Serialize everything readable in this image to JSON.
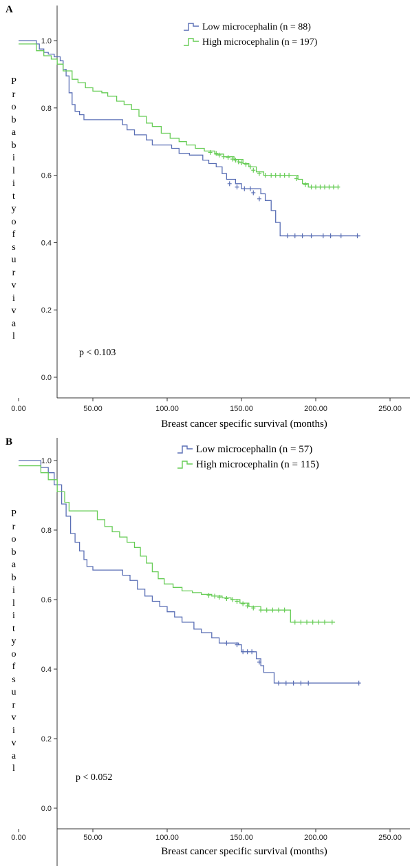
{
  "colors": {
    "low": "#5a6fb5",
    "high": "#66cc55",
    "axis": "#333333"
  },
  "chart_data": [
    {
      "type": "line",
      "panel_label": "A",
      "xlabel": "Breast cancer specific survival (months)",
      "ylabel": "Probability of survival",
      "ylabel_letters": [
        "P",
        "r",
        "o",
        "b",
        "a",
        "b",
        "i",
        "l",
        "i",
        "t",
        "y",
        "o",
        "f",
        "s",
        "u",
        "r",
        "v",
        "i",
        "v",
        "a",
        "l"
      ],
      "annotation": "p < 0.103",
      "xlim": [
        0,
        250
      ],
      "ylim": [
        0,
        1.0
      ],
      "x_ticks": [
        "0.00",
        "50.00",
        "100.00",
        "150.00",
        "200.00",
        "250.00"
      ],
      "y_ticks": [
        "0.0",
        "0.2",
        "0.4",
        "0.6",
        "0.8",
        "1.0"
      ],
      "legend": [
        "Low microcephalin (n = 88)",
        "High microcephalin (n = 197)"
      ],
      "series": [
        {
          "name": "Low microcephalin (n = 88)",
          "points": [
            [
              0,
              1.0
            ],
            [
              10,
              1.0
            ],
            [
              12,
              0.99
            ],
            [
              14,
              0.975
            ],
            [
              17,
              0.965
            ],
            [
              20,
              0.96
            ],
            [
              24,
              0.952
            ],
            [
              28,
              0.94
            ],
            [
              30,
              0.915
            ],
            [
              32,
              0.895
            ],
            [
              34,
              0.845
            ],
            [
              36,
              0.81
            ],
            [
              38,
              0.79
            ],
            [
              41,
              0.78
            ],
            [
              44,
              0.765
            ],
            [
              55,
              0.765
            ],
            [
              66,
              0.765
            ],
            [
              70,
              0.75
            ],
            [
              73,
              0.735
            ],
            [
              78,
              0.72
            ],
            [
              86,
              0.705
            ],
            [
              90,
              0.69
            ],
            [
              103,
              0.68
            ],
            [
              108,
              0.665
            ],
            [
              115,
              0.66
            ],
            [
              124,
              0.645
            ],
            [
              128,
              0.635
            ],
            [
              133,
              0.625
            ],
            [
              137,
              0.605
            ],
            [
              140,
              0.588
            ],
            [
              146,
              0.575
            ],
            [
              150,
              0.56
            ],
            [
              160,
              0.56
            ],
            [
              163,
              0.545
            ],
            [
              166,
              0.525
            ],
            [
              170,
              0.495
            ],
            [
              173,
              0.46
            ],
            [
              176,
              0.42
            ],
            [
              230,
              0.42
            ]
          ],
          "censors": [
            [
              142,
              0.575
            ],
            [
              147,
              0.565
            ],
            [
              152,
              0.56
            ],
            [
              156,
              0.56
            ],
            [
              158,
              0.548
            ],
            [
              162,
              0.53
            ],
            [
              181,
              0.42
            ],
            [
              186,
              0.42
            ],
            [
              191,
              0.42
            ],
            [
              197,
              0.42
            ],
            [
              205,
              0.42
            ],
            [
              210,
              0.42
            ],
            [
              217,
              0.42
            ],
            [
              228,
              0.42
            ]
          ]
        },
        {
          "name": "High microcephalin (n = 197)",
          "points": [
            [
              0,
              0.99
            ],
            [
              6,
              0.99
            ],
            [
              12,
              0.97
            ],
            [
              17,
              0.955
            ],
            [
              22,
              0.945
            ],
            [
              26,
              0.93
            ],
            [
              30,
              0.91
            ],
            [
              36,
              0.885
            ],
            [
              40,
              0.875
            ],
            [
              45,
              0.86
            ],
            [
              50,
              0.85
            ],
            [
              56,
              0.845
            ],
            [
              60,
              0.835
            ],
            [
              66,
              0.82
            ],
            [
              71,
              0.81
            ],
            [
              76,
              0.795
            ],
            [
              81,
              0.775
            ],
            [
              86,
              0.755
            ],
            [
              90,
              0.745
            ],
            [
              96,
              0.725
            ],
            [
              102,
              0.71
            ],
            [
              108,
              0.7
            ],
            [
              113,
              0.69
            ],
            [
              119,
              0.68
            ],
            [
              125,
              0.672
            ],
            [
              132,
              0.663
            ],
            [
              138,
              0.655
            ],
            [
              145,
              0.647
            ],
            [
              151,
              0.635
            ],
            [
              155,
              0.625
            ],
            [
              160,
              0.61
            ],
            [
              165,
              0.6
            ],
            [
              185,
              0.6
            ],
            [
              188,
              0.588
            ],
            [
              191,
              0.575
            ],
            [
              195,
              0.565
            ],
            [
              215,
              0.565
            ]
          ],
          "censors": [
            [
              129,
              0.668
            ],
            [
              133,
              0.665
            ],
            [
              135,
              0.66
            ],
            [
              138,
              0.655
            ],
            [
              141,
              0.653
            ],
            [
              144,
              0.648
            ],
            [
              146,
              0.645
            ],
            [
              148,
              0.64
            ],
            [
              150,
              0.637
            ],
            [
              153,
              0.632
            ],
            [
              156,
              0.625
            ],
            [
              158,
              0.615
            ],
            [
              162,
              0.605
            ],
            [
              166,
              0.6
            ],
            [
              170,
              0.6
            ],
            [
              173,
              0.6
            ],
            [
              176,
              0.6
            ],
            [
              179,
              0.6
            ],
            [
              182,
              0.6
            ],
            [
              187,
              0.59
            ],
            [
              193,
              0.572
            ],
            [
              197,
              0.565
            ],
            [
              200,
              0.565
            ],
            [
              203,
              0.565
            ],
            [
              206,
              0.565
            ],
            [
              209,
              0.565
            ],
            [
              212,
              0.565
            ],
            [
              215,
              0.565
            ]
          ]
        }
      ]
    },
    {
      "type": "line",
      "panel_label": "B",
      "xlabel": "Breast cancer specific survival (months)",
      "ylabel": "Probability of survival",
      "ylabel_letters": [
        "P",
        "r",
        "o",
        "b",
        "a",
        "b",
        "i",
        "l",
        "i",
        "t",
        "y",
        "o",
        "f",
        "s",
        "u",
        "r",
        "v",
        "i",
        "v",
        "a",
        "l"
      ],
      "annotation": "p < 0.052",
      "xlim": [
        0,
        250
      ],
      "ylim": [
        0,
        1.0
      ],
      "x_ticks": [
        "0.00",
        "50.00",
        "100.00",
        "150.00",
        "200.00",
        "250.00"
      ],
      "y_ticks": [
        "0.0",
        "0.2",
        "0.4",
        "0.6",
        "0.8",
        "1.0"
      ],
      "legend": [
        "Low microcephalin (n = 57)",
        "High microcephalin (n = 115)"
      ],
      "series": [
        {
          "name": "Low microcephalin (n = 57)",
          "points": [
            [
              0,
              1.0
            ],
            [
              13,
              1.0
            ],
            [
              15,
              0.98
            ],
            [
              20,
              0.965
            ],
            [
              24,
              0.93
            ],
            [
              29,
              0.875
            ],
            [
              32,
              0.84
            ],
            [
              35,
              0.79
            ],
            [
              38,
              0.765
            ],
            [
              41,
              0.74
            ],
            [
              44,
              0.715
            ],
            [
              46,
              0.695
            ],
            [
              50,
              0.685
            ],
            [
              65,
              0.685
            ],
            [
              70,
              0.67
            ],
            [
              75,
              0.655
            ],
            [
              80,
              0.63
            ],
            [
              85,
              0.61
            ],
            [
              90,
              0.595
            ],
            [
              95,
              0.58
            ],
            [
              100,
              0.565
            ],
            [
              105,
              0.55
            ],
            [
              110,
              0.535
            ],
            [
              118,
              0.515
            ],
            [
              123,
              0.505
            ],
            [
              130,
              0.49
            ],
            [
              135,
              0.475
            ],
            [
              148,
              0.47
            ],
            [
              150,
              0.45
            ],
            [
              158,
              0.45
            ],
            [
              160,
              0.43
            ],
            [
              163,
              0.41
            ],
            [
              165,
              0.39
            ],
            [
              172,
              0.36
            ],
            [
              230,
              0.36
            ]
          ],
          "censors": [
            [
              140,
              0.475
            ],
            [
              147,
              0.47
            ],
            [
              151,
              0.45
            ],
            [
              154,
              0.45
            ],
            [
              157,
              0.45
            ],
            [
              162,
              0.42
            ],
            [
              175,
              0.36
            ],
            [
              180,
              0.36
            ],
            [
              185,
              0.36
            ],
            [
              190,
              0.36
            ],
            [
              195,
              0.36
            ],
            [
              229,
              0.36
            ]
          ]
        },
        {
          "name": "High microcephalin (n = 115)",
          "points": [
            [
              0,
              0.985
            ],
            [
              11,
              0.985
            ],
            [
              15,
              0.965
            ],
            [
              20,
              0.945
            ],
            [
              26,
              0.91
            ],
            [
              31,
              0.88
            ],
            [
              34,
              0.855
            ],
            [
              48,
              0.855
            ],
            [
              53,
              0.83
            ],
            [
              58,
              0.81
            ],
            [
              63,
              0.795
            ],
            [
              68,
              0.78
            ],
            [
              73,
              0.765
            ],
            [
              78,
              0.75
            ],
            [
              82,
              0.725
            ],
            [
              86,
              0.705
            ],
            [
              90,
              0.68
            ],
            [
              94,
              0.66
            ],
            [
              98,
              0.645
            ],
            [
              104,
              0.635
            ],
            [
              110,
              0.625
            ],
            [
              117,
              0.62
            ],
            [
              123,
              0.615
            ],
            [
              130,
              0.61
            ],
            [
              137,
              0.605
            ],
            [
              143,
              0.6
            ],
            [
              149,
              0.59
            ],
            [
              155,
              0.58
            ],
            [
              163,
              0.57
            ],
            [
              181,
              0.57
            ],
            [
              183,
              0.535
            ],
            [
              213,
              0.535
            ]
          ],
          "censors": [
            [
              128,
              0.612
            ],
            [
              132,
              0.61
            ],
            [
              135,
              0.607
            ],
            [
              140,
              0.603
            ],
            [
              144,
              0.6
            ],
            [
              147,
              0.595
            ],
            [
              151,
              0.588
            ],
            [
              154,
              0.582
            ],
            [
              158,
              0.576
            ],
            [
              163,
              0.57
            ],
            [
              167,
              0.57
            ],
            [
              171,
              0.57
            ],
            [
              175,
              0.57
            ],
            [
              179,
              0.57
            ],
            [
              186,
              0.535
            ],
            [
              190,
              0.535
            ],
            [
              194,
              0.535
            ],
            [
              198,
              0.535
            ],
            [
              202,
              0.535
            ],
            [
              206,
              0.535
            ],
            [
              211,
              0.535
            ]
          ]
        }
      ]
    }
  ]
}
